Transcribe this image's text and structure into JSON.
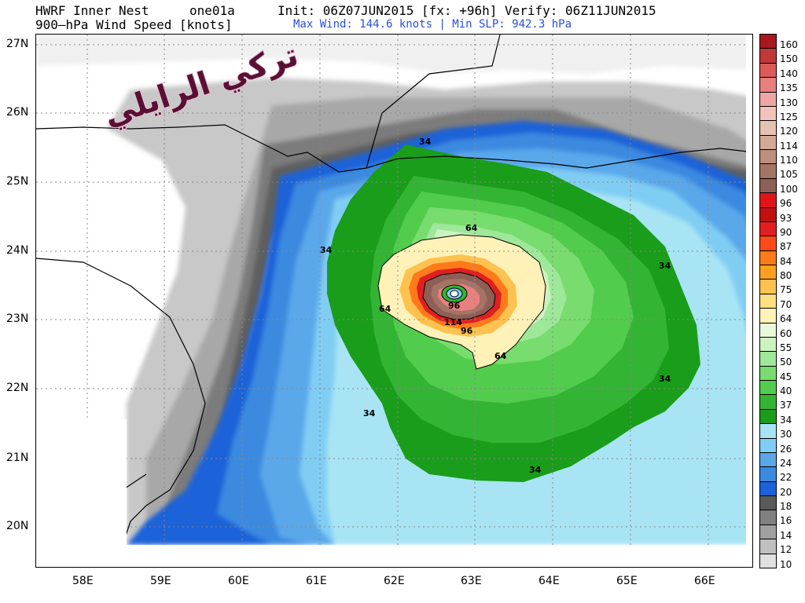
{
  "header": {
    "model": "HWRF Inner Nest",
    "storm": "one01a",
    "init": "Init: 06Z07JUN2015 [fx: +96h] Verify: 06Z11JUN2015",
    "product": "900–hPa Wind Speed [knots]",
    "stats": "Max Wind: 144.6 knots | Min SLP: 942.3 hPa"
  },
  "axes": {
    "lat_labels": [
      "27N",
      "26N",
      "25N",
      "24N",
      "23N",
      "22N",
      "21N",
      "20N"
    ],
    "lon_labels": [
      "58E",
      "59E",
      "60E",
      "61E",
      "62E",
      "63E",
      "64E",
      "65E",
      "66E"
    ]
  },
  "legend": {
    "levels": [
      "160",
      "150",
      "140",
      "135",
      "130",
      "125",
      "120",
      "114",
      "110",
      "105",
      "100",
      "96",
      "93",
      "90",
      "87",
      "84",
      "80",
      "75",
      "70",
      "64",
      "60",
      "55",
      "50",
      "45",
      "40",
      "37",
      "34",
      "30",
      "26",
      "24",
      "22",
      "20",
      "18",
      "16",
      "14",
      "12",
      "10"
    ],
    "colors": [
      "#a8181e",
      "#c23838",
      "#db5a5a",
      "#e88080",
      "#f1a6a6",
      "#f3c3bb",
      "#e5c3b3",
      "#d3aa97",
      "#be8f7d",
      "#a57466",
      "#8e5f56",
      "#e01616",
      "#c01010",
      "#e02020",
      "#ff4a1a",
      "#ff7a1a",
      "#ffa020",
      "#ffc250",
      "#ffe080",
      "#fff2b8",
      "#e9fadb",
      "#cdf2c2",
      "#9ee89a",
      "#78dc6e",
      "#52cc4c",
      "#34b434",
      "#1a9d1a",
      "#a8e4f4",
      "#80cdf4",
      "#5aa8ea",
      "#3a8ae0",
      "#1c62d8",
      "#5a5a5a",
      "#808080",
      "#a0a0a0",
      "#c0c0c0",
      "#e0e0e0"
    ]
  },
  "contour_labels": [
    "34",
    "34",
    "34",
    "34",
    "34",
    "34",
    "64",
    "64",
    "64",
    "96",
    "96",
    "114"
  ],
  "watermark_text": "تركي الرايلي"
}
